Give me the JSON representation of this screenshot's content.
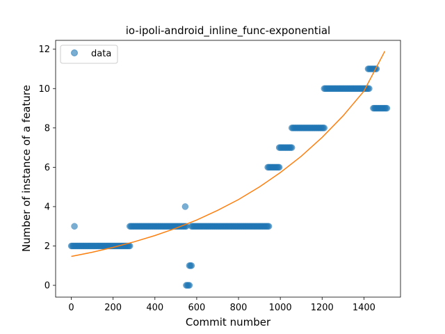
{
  "chart_data": {
    "type": "scatter",
    "title": "io-ipoli-android_inline_func-exponential",
    "xlabel": "Commit number",
    "ylabel": "Number of instance of a feature",
    "xlim": [
      -75,
      1575
    ],
    "ylim": [
      -0.6,
      12.45
    ],
    "xticks": [
      0,
      200,
      400,
      600,
      800,
      1000,
      1200,
      1400
    ],
    "yticks": [
      0,
      2,
      4,
      6,
      8,
      10,
      12
    ],
    "grid": false,
    "legend": {
      "placement": "top-left",
      "entries": [
        "data"
      ]
    },
    "colors": {
      "data": "#1f77b4",
      "fit": "#ff7f0e"
    },
    "series": [
      {
        "name": "data",
        "kind": "points",
        "runs": [
          {
            "x_start": 0,
            "x_end": 280,
            "y": 2
          },
          {
            "x_start": 280,
            "x_end": 550,
            "y": 3
          },
          {
            "x_start": 550,
            "x_end": 565,
            "y": 0
          },
          {
            "x_start": 565,
            "x_end": 575,
            "y": 1
          },
          {
            "x_start": 575,
            "x_end": 945,
            "y": 3
          },
          {
            "x_start": 940,
            "x_end": 995,
            "y": 6
          },
          {
            "x_start": 995,
            "x_end": 1055,
            "y": 7
          },
          {
            "x_start": 1055,
            "x_end": 1210,
            "y": 8
          },
          {
            "x_start": 1210,
            "x_end": 1425,
            "y": 10
          },
          {
            "x_start": 1420,
            "x_end": 1460,
            "y": 11
          },
          {
            "x_start": 1445,
            "x_end": 1510,
            "y": 9
          }
        ],
        "points": [
          {
            "x": 15,
            "y": 3
          },
          {
            "x": 545,
            "y": 4
          }
        ]
      },
      {
        "kind": "line",
        "x": [
          0,
          100,
          200,
          300,
          400,
          500,
          600,
          700,
          800,
          900,
          1000,
          1100,
          1200,
          1300,
          1400,
          1500
        ],
        "y": [
          1.47,
          1.68,
          1.93,
          2.21,
          2.53,
          2.9,
          3.32,
          3.81,
          4.36,
          5.0,
          5.73,
          6.56,
          7.52,
          8.61,
          9.87,
          11.9
        ]
      }
    ]
  }
}
